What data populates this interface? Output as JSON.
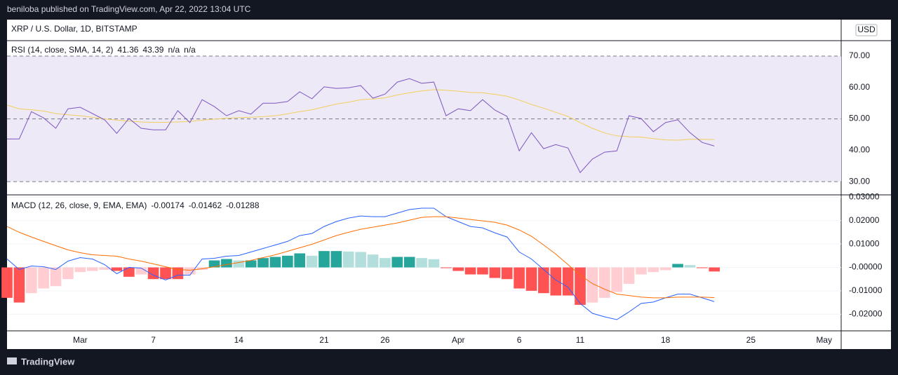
{
  "header": {
    "published": "beniloba published on TradingView.com, Apr 22, 2022 13:04 UTC",
    "symbol": "XRP / U.S. Dollar, 1D, BITSTAMP",
    "currency": "USD",
    "brand": "TradingView"
  },
  "chart_data": [
    {
      "type": "line",
      "legend_title": "RSI (14, close, SMA, 14, 2)",
      "extra_labels": [
        "n/a",
        "n/a"
      ],
      "ylim": [
        25.8,
        74.9
      ],
      "yticks": [
        {
          "value": 30,
          "label": "30.00"
        },
        {
          "value": 40,
          "label": "40.00"
        },
        {
          "value": 50,
          "label": "50.00"
        },
        {
          "value": 60,
          "label": "60.00"
        },
        {
          "value": 70,
          "label": "70.00"
        }
      ],
      "levels": [
        70,
        50,
        30
      ],
      "band_color": "#ede9f7",
      "series": [
        {
          "color": "#7e57c2",
          "last": 41.36,
          "values": [
            43.6,
            43.6,
            52.3,
            50.3,
            47,
            53.2,
            53.7,
            51.7,
            49.7,
            45.4,
            50.1,
            47,
            46.5,
            46.5,
            52.6,
            48.8,
            56.1,
            53.9,
            51,
            52.6,
            51.5,
            55,
            55,
            55.5,
            58.6,
            56.4,
            60.2,
            59.7,
            59.9,
            60.6,
            56.6,
            57.9,
            61.7,
            62.8,
            61.3,
            61.7,
            51,
            53.2,
            52.6,
            56.1,
            52.8,
            50.8,
            39.8,
            45.6,
            40.5,
            41.8,
            40.7,
            32.9,
            37.2,
            39.4,
            39.8,
            51,
            50.1,
            45.9,
            48.8,
            49.7,
            45.6,
            42.5,
            41.36,
            null,
            null,
            null,
            null,
            null,
            null,
            null,
            null,
            null,
            null
          ]
        },
        {
          "color": "#f2cf5b",
          "last": 43.39,
          "values": [
            54.4,
            53.2,
            52.9,
            52.5,
            51.7,
            51.3,
            51.0,
            50.5,
            50.0,
            49.6,
            49.3,
            49.0,
            48.9,
            48.9,
            49.0,
            49.2,
            49.6,
            49.9,
            50.2,
            50.4,
            50.5,
            50.7,
            51.0,
            51.6,
            52.3,
            52.9,
            53.8,
            54.7,
            55.3,
            56.1,
            56.3,
            56.7,
            57.6,
            58.3,
            58.9,
            59.3,
            59.1,
            58.8,
            58.4,
            58.3,
            57.8,
            57.2,
            56.0,
            54.6,
            53.4,
            52.1,
            50.8,
            48.8,
            47.0,
            45.5,
            44.6,
            44.3,
            44.2,
            43.7,
            43.3,
            43.2,
            43.5,
            43.5,
            43.39,
            null,
            null,
            null,
            null,
            null,
            null,
            null,
            null,
            null,
            null
          ]
        }
      ]
    },
    {
      "type": "macd",
      "legend_title": "MACD (12, 26, close, 9, EMA, EMA)",
      "categories": [
        null,
        null,
        null,
        null,
        null,
        null,
        "Mar",
        null,
        null,
        null,
        null,
        null,
        "7",
        null,
        null,
        null,
        null,
        null,
        null,
        "14",
        null,
        null,
        null,
        null,
        null,
        null,
        "21",
        null,
        null,
        null,
        null,
        "26",
        null,
        null,
        null,
        null,
        null,
        "Apr",
        null,
        null,
        null,
        null,
        "6",
        null,
        null,
        null,
        null,
        "11",
        null,
        null,
        null,
        null,
        null,
        null,
        "18",
        null,
        null,
        null,
        null,
        null,
        null,
        "25",
        null,
        null,
        null,
        null,
        null,
        "May",
        null
      ],
      "ylim": [
        -0.0271,
        0.031
      ],
      "yticks": [
        {
          "value": 0.03,
          "label": "0.03000"
        },
        {
          "value": 0.02,
          "label": "0.02000"
        },
        {
          "value": 0.01,
          "label": "0.01000"
        },
        {
          "value": 0,
          "label": "-0.00000"
        },
        {
          "value": -0.01,
          "label": "-0.01000"
        },
        {
          "value": -0.02,
          "label": "-0.02000"
        }
      ],
      "histogram": {
        "last": -0.00174,
        "colors": {
          "up_rising": "#26a69a",
          "up_falling": "#b2dfdb",
          "down_falling": "#ff5252",
          "down_rising": "#ffcdd2"
        },
        "values": [
          -0.013,
          -0.015,
          -0.011,
          -0.009,
          -0.008,
          -0.005,
          -0.002,
          -0.0015,
          -0.001,
          -0.0015,
          -0.004,
          -0.003,
          -0.005,
          -0.005,
          -0.005,
          -0.003,
          -0.001,
          0.003,
          0.0036,
          0.003,
          0.003,
          0.004,
          0.0045,
          0.005,
          0.006,
          0.005,
          0.007,
          0.007,
          0.0068,
          0.0066,
          0.0055,
          0.004,
          0.0045,
          0.0045,
          0.004,
          0.0035,
          -0.0003,
          -0.0015,
          -0.003,
          -0.003,
          -0.0045,
          -0.005,
          -0.009,
          -0.01,
          -0.011,
          -0.012,
          -0.012,
          -0.016,
          -0.015,
          -0.013,
          -0.0105,
          -0.007,
          -0.003,
          -0.002,
          -0.0012,
          0.0015,
          0.001,
          -0.0003,
          -0.00174,
          null,
          null,
          null,
          null,
          null,
          null,
          null,
          null,
          null,
          null
        ]
      },
      "series": [
        {
          "color": "#2962ff",
          "last": -0.01462,
          "values": [
            0.0036,
            -0.0009,
            0.0006,
            0.0003,
            -0.0009,
            0.0027,
            0.0042,
            0.0036,
            0.0012,
            -0.0027,
            0,
            -0.0003,
            -0.0033,
            -0.0054,
            -0.0033,
            -0.0033,
            0.0036,
            0.0039,
            0.0048,
            0.0051,
            0.0066,
            0.0081,
            0.0096,
            0.0111,
            0.0136,
            0.0145,
            0.0175,
            0.0196,
            0.0211,
            0.022,
            0.0217,
            0.0217,
            0.0232,
            0.0247,
            0.0253,
            0.0253,
            0.0217,
            0.0196,
            0.0175,
            0.0169,
            0.0148,
            0.013,
            0.0066,
            0.0036,
            -0.0009,
            -0.0054,
            -0.0084,
            -0.0154,
            -0.0196,
            -0.0211,
            -0.0223,
            -0.019,
            -0.0154,
            -0.0148,
            -0.013,
            -0.0114,
            -0.0114,
            -0.013,
            -0.01462,
            null,
            null,
            null,
            null,
            null,
            null,
            null,
            null,
            null,
            null
          ]
        },
        {
          "color": "#ff6d00",
          "last": -0.01288,
          "values": [
            0.0175,
            0.015,
            0.013,
            0.0111,
            0.0093,
            0.0075,
            0.0063,
            0.0054,
            0.0051,
            0.0048,
            0.0036,
            0.0027,
            0.0015,
            0.0003,
            -0.0009,
            -0.0012,
            -0.0006,
            0.0003,
            0.0012,
            0.0021,
            0.003,
            0.0042,
            0.0054,
            0.0069,
            0.0084,
            0.0099,
            0.0117,
            0.0136,
            0.015,
            0.0163,
            0.0172,
            0.0181,
            0.019,
            0.0202,
            0.0214,
            0.0217,
            0.0217,
            0.0211,
            0.0205,
            0.0199,
            0.0193,
            0.0181,
            0.016,
            0.0133,
            0.0096,
            0.0057,
            0.0012,
            -0.0033,
            -0.0069,
            -0.0093,
            -0.0114,
            -0.012,
            -0.0127,
            -0.013,
            -0.013,
            -0.0127,
            -0.0127,
            -0.0127,
            -0.01288,
            null,
            null,
            null,
            null,
            null,
            null,
            null,
            null,
            null,
            null
          ]
        }
      ]
    }
  ]
}
